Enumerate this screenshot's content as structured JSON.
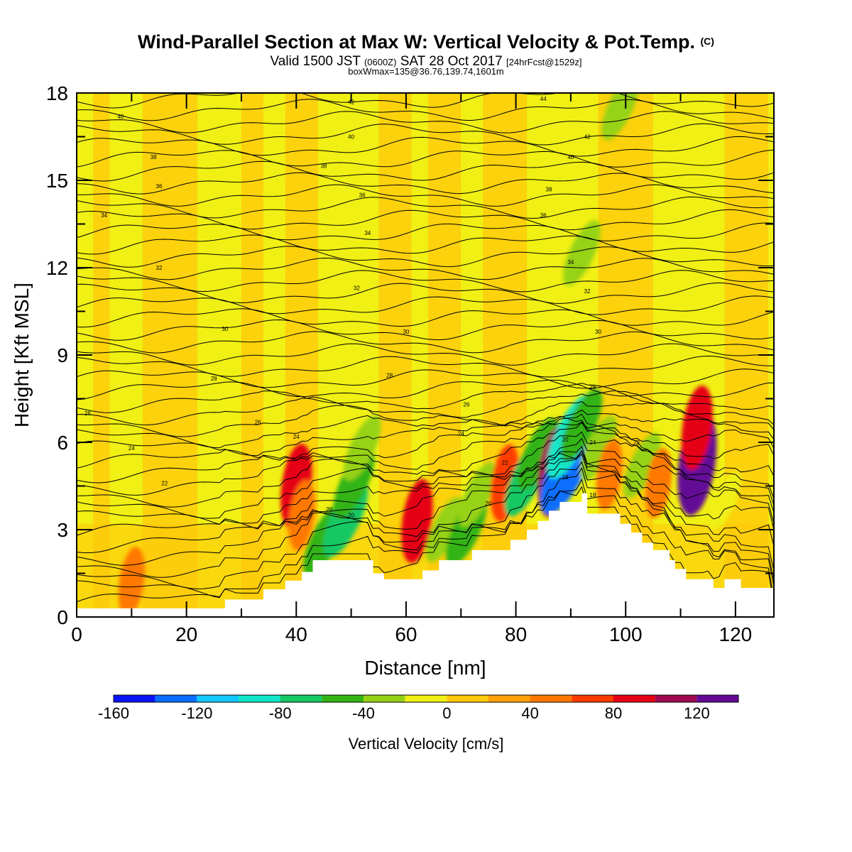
{
  "header": {
    "title": "Wind-Parallel Section at Max W: Vertical Velocity & Pot.Temp.",
    "title_suffix": "(C)",
    "subtitle_a": "Valid 1500 JST",
    "subtitle_b": "(0600Z)",
    "subtitle_c": "SAT 28 Oct 2017",
    "subtitle_d": "[24hrFcst@1529z]",
    "box_line": "boxWmax=135@36.76,139.74,1601m"
  },
  "chart_data": {
    "type": "heatmap",
    "xlabel": "Distance [nm]",
    "ylabel": "Height [Kft MSL]",
    "xlim": [
      0,
      127
    ],
    "ylim": [
      0,
      18
    ],
    "x_ticks": [
      "0",
      "20",
      "40",
      "60",
      "80",
      "100",
      "120"
    ],
    "y_ticks": [
      "0",
      "3",
      "6",
      "9",
      "12",
      "15",
      "18"
    ],
    "colorbar": {
      "label": "Vertical Velocity [cm/s]",
      "min": -160,
      "max": 140,
      "step": 20,
      "tick_labels": [
        "-160",
        "-120",
        "-80",
        "-40",
        "0",
        "40",
        "80",
        "120"
      ],
      "colors": [
        "#0a14ff",
        "#0a6eff",
        "#12c8ff",
        "#12e6c8",
        "#14c864",
        "#32b414",
        "#96d214",
        "#f0f014",
        "#ffc80a",
        "#ffa00a",
        "#ff7800",
        "#ff3c00",
        "#e60014",
        "#a00a50",
        "#640a96"
      ]
    },
    "terrain_kft": [
      [
        0,
        0.3
      ],
      [
        27,
        0.3
      ],
      [
        27,
        0.6
      ],
      [
        34,
        0.6
      ],
      [
        34,
        0.95
      ],
      [
        38,
        0.95
      ],
      [
        38,
        1.25
      ],
      [
        41,
        1.25
      ],
      [
        41,
        1.55
      ],
      [
        43,
        1.55
      ],
      [
        43,
        1.95
      ],
      [
        54,
        1.95
      ],
      [
        54,
        1.5
      ],
      [
        56,
        1.5
      ],
      [
        56,
        1.3
      ],
      [
        63,
        1.3
      ],
      [
        63,
        1.6
      ],
      [
        66,
        1.6
      ],
      [
        66,
        1.95
      ],
      [
        72,
        1.95
      ],
      [
        72,
        2.3
      ],
      [
        79,
        2.3
      ],
      [
        79,
        2.65
      ],
      [
        82,
        2.65
      ],
      [
        82,
        3.0
      ],
      [
        84,
        3.0
      ],
      [
        84,
        3.3
      ],
      [
        86,
        3.3
      ],
      [
        86,
        3.65
      ],
      [
        88,
        3.65
      ],
      [
        88,
        3.95
      ],
      [
        92,
        3.95
      ],
      [
        92,
        4.25
      ],
      [
        93,
        4.25
      ],
      [
        93,
        3.55
      ],
      [
        99,
        3.55
      ],
      [
        99,
        3.2
      ],
      [
        101,
        3.2
      ],
      [
        101,
        2.9
      ],
      [
        103,
        2.9
      ],
      [
        103,
        2.55
      ],
      [
        105,
        2.55
      ],
      [
        105,
        2.3
      ],
      [
        108,
        2.3
      ],
      [
        108,
        1.95
      ],
      [
        109,
        1.95
      ],
      [
        109,
        1.65
      ],
      [
        111,
        1.65
      ],
      [
        111,
        1.3
      ],
      [
        116,
        1.3
      ],
      [
        116,
        1.0
      ],
      [
        118,
        1.0
      ],
      [
        118,
        1.3
      ],
      [
        121,
        1.3
      ],
      [
        121,
        1.0
      ],
      [
        127,
        1.0
      ],
      [
        127,
        0
      ]
    ],
    "cells": [
      {
        "x": 40,
        "y": 4.5,
        "value": 80
      },
      {
        "x": 41,
        "y": 3.5,
        "value": 40
      },
      {
        "x": 45,
        "y": 2.6,
        "value": -60
      },
      {
        "x": 49,
        "y": 3.4,
        "value": -80
      },
      {
        "x": 50.5,
        "y": 4.6,
        "value": -60
      },
      {
        "x": 52,
        "y": 5.8,
        "value": -40
      },
      {
        "x": 62,
        "y": 3.3,
        "value": 80
      },
      {
        "x": 67,
        "y": 3.0,
        "value": -40
      },
      {
        "x": 71,
        "y": 3.0,
        "value": -60
      },
      {
        "x": 73,
        "y": 4.2,
        "value": -40
      },
      {
        "x": 78,
        "y": 4.6,
        "value": 60
      },
      {
        "x": 82,
        "y": 4.8,
        "value": -80
      },
      {
        "x": 84,
        "y": 5.6,
        "value": -60
      },
      {
        "x": 87,
        "y": 5.0,
        "value": 100
      },
      {
        "x": 89.5,
        "y": 5.2,
        "value": -140
      },
      {
        "x": 90,
        "y": 6.2,
        "value": -100
      },
      {
        "x": 92,
        "y": 6.6,
        "value": -60
      },
      {
        "x": 95,
        "y": 5.8,
        "value": -40
      },
      {
        "x": 97,
        "y": 4.9,
        "value": 40
      },
      {
        "x": 103,
        "y": 5.2,
        "value": -40
      },
      {
        "x": 106,
        "y": 4.6,
        "value": 40
      },
      {
        "x": 113,
        "y": 5.3,
        "value": 140
      },
      {
        "x": 113,
        "y": 6.5,
        "value": 80
      },
      {
        "x": 118,
        "y": 4.0,
        "value": -20
      },
      {
        "x": 10,
        "y": 1.2,
        "value": 40
      },
      {
        "x": 92,
        "y": 12.5,
        "value": -40
      },
      {
        "x": 99,
        "y": 17.5,
        "value": -40
      }
    ],
    "isentrope_labels": [
      {
        "x": 8,
        "y": 17.2,
        "text": "40"
      },
      {
        "x": 50,
        "y": 17.7,
        "text": "42"
      },
      {
        "x": 85,
        "y": 17.8,
        "text": "44"
      },
      {
        "x": 50,
        "y": 16.5,
        "text": "40"
      },
      {
        "x": 93,
        "y": 16.5,
        "text": "42"
      },
      {
        "x": 14,
        "y": 15.8,
        "text": "38"
      },
      {
        "x": 45,
        "y": 15.5,
        "text": "38"
      },
      {
        "x": 90,
        "y": 15.8,
        "text": "40"
      },
      {
        "x": 15,
        "y": 14.8,
        "text": "36"
      },
      {
        "x": 52,
        "y": 14.5,
        "text": "36"
      },
      {
        "x": 86,
        "y": 14.7,
        "text": "38"
      },
      {
        "x": 5,
        "y": 13.8,
        "text": "34"
      },
      {
        "x": 53,
        "y": 13.2,
        "text": "34"
      },
      {
        "x": 85,
        "y": 13.8,
        "text": "36"
      },
      {
        "x": 15,
        "y": 12.0,
        "text": "32"
      },
      {
        "x": 51,
        "y": 11.3,
        "text": "32"
      },
      {
        "x": 90,
        "y": 12.2,
        "text": "34"
      },
      {
        "x": 93,
        "y": 11.2,
        "text": "32"
      },
      {
        "x": 27,
        "y": 9.9,
        "text": "30"
      },
      {
        "x": 60,
        "y": 9.8,
        "text": "30"
      },
      {
        "x": 95,
        "y": 9.8,
        "text": "30"
      },
      {
        "x": 25,
        "y": 8.2,
        "text": "28"
      },
      {
        "x": 57,
        "y": 8.3,
        "text": "28"
      },
      {
        "x": 94,
        "y": 7.9,
        "text": "28"
      },
      {
        "x": 2,
        "y": 7.0,
        "text": "26"
      },
      {
        "x": 33,
        "y": 6.7,
        "text": "26"
      },
      {
        "x": 71,
        "y": 7.3,
        "text": "26"
      },
      {
        "x": 40,
        "y": 6.2,
        "text": "24"
      },
      {
        "x": 70,
        "y": 6.3,
        "text": "24"
      },
      {
        "x": 10,
        "y": 5.8,
        "text": "24"
      },
      {
        "x": 16,
        "y": 4.6,
        "text": "22"
      },
      {
        "x": 78,
        "y": 5.3,
        "text": "22"
      },
      {
        "x": 94,
        "y": 6.0,
        "text": "24"
      },
      {
        "x": 102,
        "y": 6.0,
        "text": "22"
      },
      {
        "x": 46,
        "y": 3.7,
        "text": "20"
      },
      {
        "x": 50,
        "y": 3.5,
        "text": "20"
      },
      {
        "x": 75,
        "y": 3.9,
        "text": "20"
      },
      {
        "x": 89,
        "y": 6.1,
        "text": "20"
      },
      {
        "x": 89,
        "y": 4.8,
        "text": "18"
      },
      {
        "x": 94,
        "y": 4.2,
        "text": "18"
      }
    ]
  }
}
